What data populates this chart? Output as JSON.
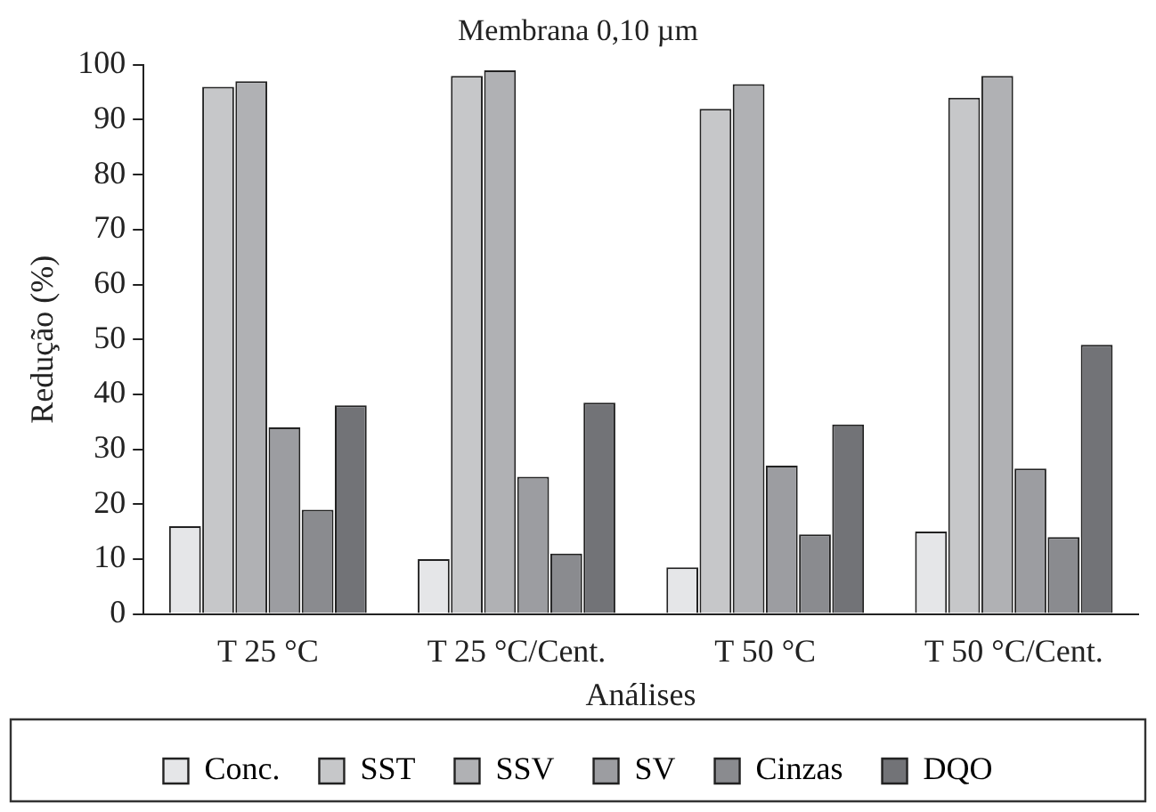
{
  "chart_data": {
    "type": "bar",
    "title": "Membrana 0,10 µm",
    "xlabel": "Análises",
    "ylabel": "Redução (%)",
    "categories": [
      "T 25 °C",
      "T 25 °C/Cent.",
      "T 50 °C",
      "T 50 °C/Cent."
    ],
    "series": [
      {
        "name": "Conc.",
        "color": "#e5e6e8",
        "values": [
          16,
          10,
          8.5,
          15
        ]
      },
      {
        "name": "SST",
        "color": "#c6c7c9",
        "values": [
          96,
          98,
          92,
          94
        ]
      },
      {
        "name": "SSV",
        "color": "#b0b1b4",
        "values": [
          97,
          99,
          96.5,
          98
        ]
      },
      {
        "name": "SV",
        "color": "#9c9da1",
        "values": [
          34,
          25,
          27,
          26.5
        ]
      },
      {
        "name": "Cinzas",
        "color": "#8a8b8f",
        "values": [
          19,
          11,
          14.5,
          14
        ]
      },
      {
        "name": "DQO",
        "color": "#727377",
        "values": [
          38,
          38.5,
          34.5,
          49
        ]
      }
    ],
    "ylim": [
      0,
      100
    ],
    "yticks": [
      0,
      10,
      20,
      30,
      40,
      50,
      60,
      70,
      80,
      90,
      100
    ],
    "grid": false,
    "legend": "bottom"
  }
}
